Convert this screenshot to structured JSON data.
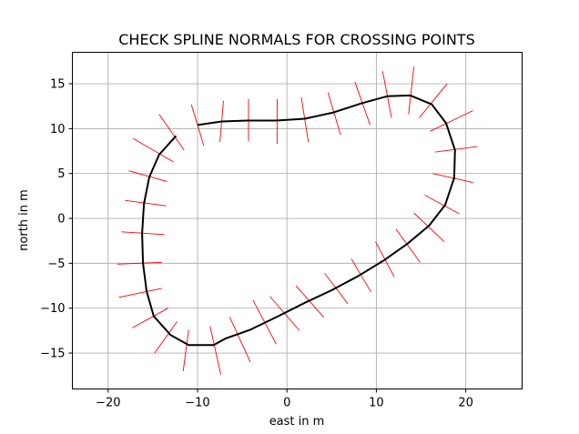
{
  "chart_data": {
    "type": "line",
    "title": "CHECK SPLINE NORMALS FOR CROSSING POINTS",
    "xlabel": "east in m",
    "ylabel": "north in m",
    "xlim": [
      -24,
      26.3
    ],
    "ylim": [
      -19,
      18.5
    ],
    "xticks": [
      -20,
      -10,
      0,
      10,
      20
    ],
    "yticks": [
      -15,
      -10,
      -5,
      0,
      5,
      10,
      15
    ],
    "xtick_labels": [
      "−20",
      "−10",
      "0",
      "10",
      "20"
    ],
    "ytick_labels": [
      "−15",
      "−10",
      "−5",
      "0",
      "5",
      "10",
      "15"
    ],
    "grid": true,
    "colors": {
      "spline": "#000000",
      "normals": "#ff0000",
      "grid": "#b0b0b0"
    },
    "series": [
      {
        "values": [
          [
            -10.0,
            10.4
          ],
          [
            -7.3,
            10.8
          ],
          [
            -4.4,
            10.9
          ],
          [
            -1.2,
            10.9
          ],
          [
            2.0,
            11.1
          ],
          [
            5.2,
            11.8
          ],
          [
            8.3,
            12.8
          ],
          [
            11.2,
            13.6
          ],
          [
            13.8,
            13.7
          ],
          [
            16.2,
            12.7
          ],
          [
            17.8,
            10.6
          ],
          [
            18.8,
            7.6
          ],
          [
            18.7,
            4.5
          ],
          [
            17.7,
            1.5
          ],
          [
            15.9,
            -0.8
          ],
          [
            13.5,
            -2.8
          ],
          [
            10.8,
            -4.7
          ],
          [
            8.0,
            -6.4
          ],
          [
            5.0,
            -8.0
          ],
          [
            2.0,
            -9.4
          ],
          [
            -1.0,
            -10.9
          ],
          [
            -4.1,
            -12.4
          ],
          [
            -6.9,
            -13.4
          ],
          [
            -8.2,
            -14.1
          ],
          [
            -11.0,
            -14.1
          ],
          [
            -13.0,
            -13.0
          ],
          [
            -14.9,
            -10.9
          ],
          [
            -15.7,
            -8.1
          ],
          [
            -16.1,
            -5.0
          ],
          [
            -16.2,
            -1.7
          ],
          [
            -16.0,
            1.6
          ],
          [
            -15.4,
            4.6
          ],
          [
            -14.3,
            7.1
          ],
          [
            -12.4,
            9.2
          ]
        ]
      },
      {
        "values": [
          [
            [
              -9.3,
              8.1
            ],
            [
              -10.7,
              12.7
            ]
          ],
          [
            [
              -7.5,
              8.5
            ],
            [
              -7.1,
              13.1
            ]
          ],
          [
            [
              -4.3,
              8.6
            ],
            [
              -4.3,
              13.3
            ]
          ],
          [
            [
              -1.1,
              8.3
            ],
            [
              -1.1,
              13.3
            ]
          ],
          [
            [
              2.4,
              8.5
            ],
            [
              1.6,
              13.5
            ]
          ],
          [
            [
              6.0,
              9.3
            ],
            [
              4.6,
              14.0
            ]
          ],
          [
            [
              9.3,
              10.4
            ],
            [
              7.6,
              15.2
            ]
          ],
          [
            [
              11.7,
              11.2
            ],
            [
              10.7,
              16.4
            ]
          ],
          [
            [
              13.6,
              11.6
            ],
            [
              14.2,
              16.9
            ]
          ],
          [
            [
              14.8,
              11.2
            ],
            [
              17.9,
              15.0
            ]
          ],
          [
            [
              16.0,
              9.7
            ],
            [
              20.8,
              12.0
            ]
          ],
          [
            [
              16.6,
              7.4
            ],
            [
              21.3,
              8.0
            ]
          ],
          [
            [
              16.3,
              5.0
            ],
            [
              20.8,
              4.0
            ]
          ],
          [
            [
              15.4,
              2.6
            ],
            [
              19.3,
              0.5
            ]
          ],
          [
            [
              14.2,
              0.6
            ],
            [
              17.6,
              -2.6
            ]
          ],
          [
            [
              12.2,
              -1.2
            ],
            [
              14.9,
              -4.9
            ]
          ],
          [
            [
              9.9,
              -2.6
            ],
            [
              12.0,
              -6.5
            ]
          ],
          [
            [
              7.2,
              -4.5
            ],
            [
              9.4,
              -8.2
            ]
          ],
          [
            [
              4.2,
              -6.1
            ],
            [
              6.8,
              -9.5
            ]
          ],
          [
            [
              1.0,
              -7.5
            ],
            [
              4.1,
              -11.0
            ]
          ],
          [
            [
              -1.9,
              -8.7
            ],
            [
              1.4,
              -12.5
            ]
          ],
          [
            [
              -3.8,
              -9.1
            ],
            [
              -1.2,
              -14.0
            ]
          ],
          [
            [
              -6.4,
              -11.0
            ],
            [
              -4.1,
              -16.0
            ]
          ],
          [
            [
              -8.6,
              -12.0
            ],
            [
              -7.4,
              -17.4
            ]
          ],
          [
            [
              -11.0,
              -12.4
            ],
            [
              -11.6,
              -17.0
            ]
          ],
          [
            [
              -12.3,
              -11.5
            ],
            [
              -14.8,
              -15.0
            ]
          ],
          [
            [
              -13.3,
              -10.0
            ],
            [
              -17.3,
              -12.2
            ]
          ],
          [
            [
              -14.0,
              -7.8
            ],
            [
              -18.8,
              -8.8
            ]
          ],
          [
            [
              -14.0,
              -4.9
            ],
            [
              -19.0,
              -5.1
            ]
          ],
          [
            [
              -13.7,
              -1.8
            ],
            [
              -18.5,
              -1.5
            ]
          ],
          [
            [
              -13.5,
              1.4
            ],
            [
              -18.1,
              2.0
            ]
          ],
          [
            [
              -13.4,
              4.1
            ],
            [
              -17.7,
              5.3
            ]
          ],
          [
            [
              -12.7,
              6.3
            ],
            [
              -17.2,
              8.9
            ]
          ],
          [
            [
              -11.5,
              7.6
            ],
            [
              -14.3,
              11.6
            ]
          ]
        ]
      }
    ]
  }
}
